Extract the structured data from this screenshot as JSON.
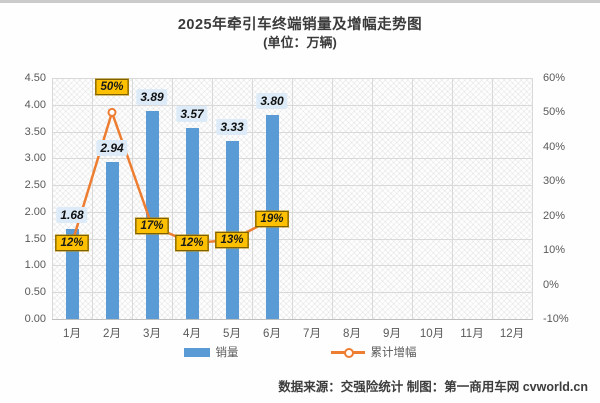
{
  "title": {
    "line1": "2025年牵引车终端销量及增幅走势图",
    "line2": "(单位：万辆)"
  },
  "chart_data": {
    "type": "bar+line combo",
    "categories": [
      "1月",
      "2月",
      "3月",
      "4月",
      "5月",
      "6月",
      "7月",
      "8月",
      "9月",
      "10月",
      "11月",
      "12月"
    ],
    "series": [
      {
        "name": "销量",
        "type": "bar",
        "color": "#5b9bd5",
        "values": [
          1.68,
          2.94,
          3.89,
          3.57,
          3.33,
          3.8,
          null,
          null,
          null,
          null,
          null,
          null
        ],
        "labels": [
          "1.68",
          "2.94",
          "3.89",
          "3.57",
          "3.33",
          "3.80"
        ]
      },
      {
        "name": "累计增幅",
        "type": "line",
        "color": "#ed7d31",
        "values": [
          12,
          50,
          17,
          12,
          13,
          19,
          null,
          null,
          null,
          null,
          null,
          null
        ],
        "labels": [
          "12%",
          "50%",
          "17%",
          "12%",
          "13%",
          "19%"
        ]
      }
    ],
    "left_axis": {
      "min": 0,
      "max": 4.5,
      "step": 0.5,
      "ticks": [
        "0.00",
        "0.50",
        "1.00",
        "1.50",
        "2.00",
        "2.50",
        "3.00",
        "3.50",
        "4.00",
        "4.50"
      ]
    },
    "right_axis": {
      "min": -10,
      "max": 60,
      "step": 10,
      "ticks": [
        "-10%",
        "0%",
        "10%",
        "20%",
        "30%",
        "40%",
        "50%",
        "60%"
      ]
    },
    "grid": "both",
    "legend_position": "bottom"
  },
  "legend": {
    "sales": "销量",
    "growth": "累计增幅"
  },
  "footer": {
    "text": "数据来源：交强险统计  制图：第一商用车网 cvworld.cn"
  },
  "colors": {
    "bar": "#5b9bd5",
    "line": "#ed7d31",
    "pct_label_bg": "#ffc000",
    "value_label_bg": "#dcebf7"
  }
}
